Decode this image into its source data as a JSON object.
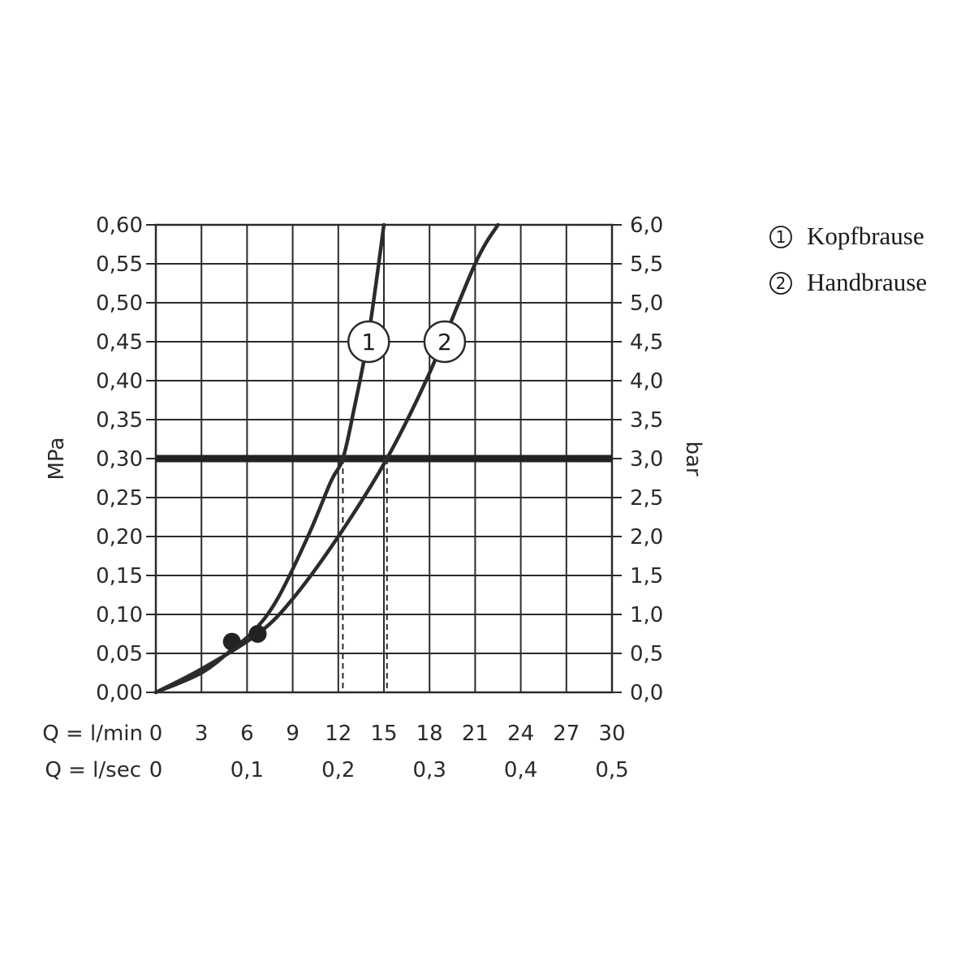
{
  "colors": {
    "ink": "#2b2b2b",
    "grid": "#2b2b2b",
    "background": "#ffffff"
  },
  "chart_data": {
    "type": "line",
    "x_unit": "Q = l/min",
    "x_secondary_unit": "Q = l/sec",
    "xlim": [
      0,
      30
    ],
    "ylim": [
      0,
      0.6
    ],
    "ylabel_left": "MPa",
    "ylabel_right": "bar",
    "x_ticks": [
      "0",
      "3",
      "6",
      "9",
      "12",
      "15",
      "18",
      "21",
      "24",
      "27",
      "30"
    ],
    "x_secondary_ticks": [
      {
        "x": 0,
        "label": "0"
      },
      {
        "x": 6,
        "label": "0,1"
      },
      {
        "x": 12,
        "label": "0,2"
      },
      {
        "x": 18,
        "label": "0,3"
      },
      {
        "x": 24,
        "label": "0,4"
      },
      {
        "x": 30,
        "label": "0,5"
      }
    ],
    "y_ticks": [
      {
        "y": 0.0,
        "left": "0,00",
        "right": "0,0"
      },
      {
        "y": 0.05,
        "left": "0,05",
        "right": "0,5"
      },
      {
        "y": 0.1,
        "left": "0,10",
        "right": "1,0"
      },
      {
        "y": 0.15,
        "left": "0,15",
        "right": "1,5"
      },
      {
        "y": 0.2,
        "left": "0,20",
        "right": "2,0"
      },
      {
        "y": 0.25,
        "left": "0,25",
        "right": "2,5"
      },
      {
        "y": 0.3,
        "left": "0,30",
        "right": "3,0"
      },
      {
        "y": 0.35,
        "left": "0,35",
        "right": "3,5"
      },
      {
        "y": 0.4,
        "left": "0,40",
        "right": "4,0"
      },
      {
        "y": 0.45,
        "left": "0,45",
        "right": "4,5"
      },
      {
        "y": 0.5,
        "left": "0,50",
        "right": "5,0"
      },
      {
        "y": 0.55,
        "left": "0,55",
        "right": "5,5"
      },
      {
        "y": 0.6,
        "left": "0,60",
        "right": "6,0"
      }
    ],
    "grid": true,
    "reference_line_y": 0.3,
    "series": [
      {
        "label": "1",
        "name": "Kopfbrause",
        "x": [
          0,
          3,
          5,
          6.5,
          8,
          10,
          11.5,
          12.3,
          13,
          14,
          15
        ],
        "y": [
          0,
          0.025,
          0.055,
          0.08,
          0.12,
          0.2,
          0.27,
          0.3,
          0.36,
          0.46,
          0.6
        ],
        "marker": {
          "x": 5,
          "y": 0.065
        },
        "dashed_drop_x": 12.3,
        "tag": {
          "x": 14,
          "y": 0.45
        }
      },
      {
        "label": "2",
        "name": "Handbrause",
        "x": [
          0,
          3,
          6.7,
          9,
          12,
          15.2,
          18,
          21,
          22.5
        ],
        "y": [
          0,
          0.03,
          0.075,
          0.12,
          0.2,
          0.3,
          0.41,
          0.55,
          0.6
        ],
        "marker": {
          "x": 6.7,
          "y": 0.075
        },
        "dashed_drop_x": 15.2,
        "tag": {
          "x": 19,
          "y": 0.45
        }
      }
    ],
    "legend_position": "top-right",
    "legend": [
      {
        "symbol": "1",
        "label": "Kopfbrause"
      },
      {
        "symbol": "2",
        "label": "Handbrause"
      }
    ]
  }
}
